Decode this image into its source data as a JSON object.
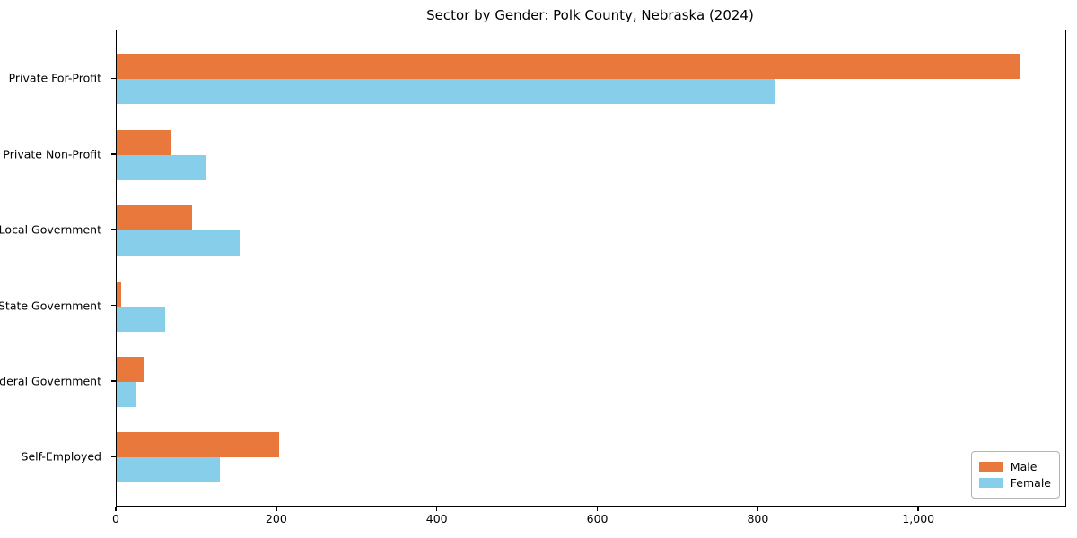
{
  "chart_data": {
    "type": "bar",
    "orientation": "horizontal",
    "title": "Sector by Gender: Polk County, Nebraska (2024)",
    "xlabel": "",
    "ylabel": "",
    "grid": false,
    "legend_position": "lower right",
    "xlim": [
      0,
      1182
    ],
    "xticks": [
      0,
      200,
      400,
      600,
      800,
      1000
    ],
    "categories": [
      "Private For-Profit",
      "Private Non-Profit",
      "Local Government",
      "State Government",
      "Federal Government",
      "Self-Employed"
    ],
    "series": [
      {
        "name": "Male",
        "color": "#e8783c",
        "values": [
          1125,
          68,
          94,
          5,
          35,
          202
        ]
      },
      {
        "name": "Female",
        "color": "#87ceeb",
        "values": [
          820,
          111,
          153,
          60,
          24,
          128
        ]
      }
    ]
  },
  "colors": {
    "male": "#e8783c",
    "female": "#87ceeb",
    "spine": "#000000",
    "legend_border": "#b4b4b4",
    "background": "#ffffff"
  }
}
